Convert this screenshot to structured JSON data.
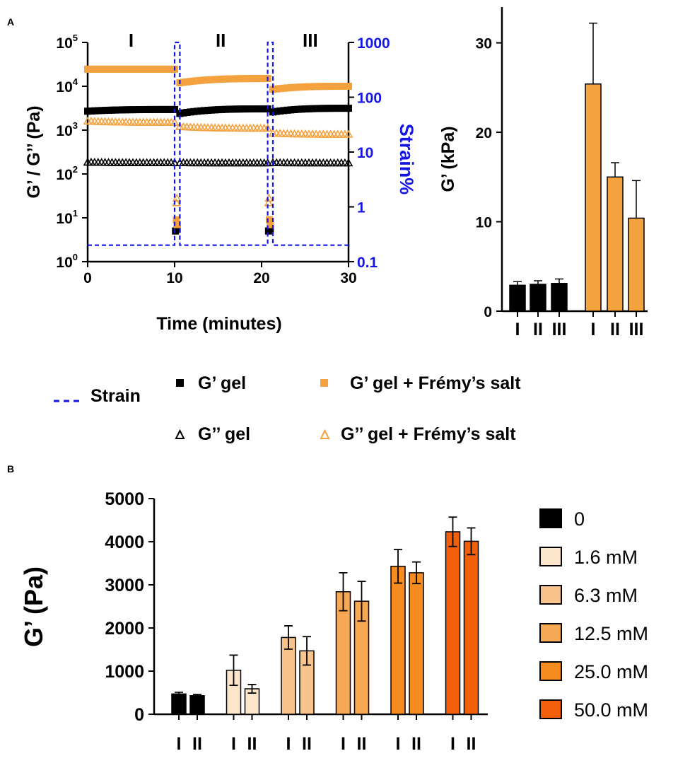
{
  "panel_labels": {
    "a": "A",
    "b": "B"
  },
  "colors": {
    "black": "#000000",
    "orange": "#F4A240",
    "strain": "#1515E6",
    "conc": [
      "#000000",
      "#FCE6CB",
      "#F9C48C",
      "#F6A855",
      "#F68B1F",
      "#F2600C"
    ]
  },
  "chart_data": [
    {
      "id": "rheology",
      "type": "line",
      "xlabel": "Time (minutes)",
      "ylabel": "G’ / G’’ (Pa)",
      "y2label": "Strain%",
      "xlim": [
        0,
        30
      ],
      "xticks": [
        "0",
        "10",
        "20",
        "30"
      ],
      "ylim_log10": [
        0,
        5
      ],
      "yticks": [
        {
          "base": "10",
          "exp": "0"
        },
        {
          "base": "10",
          "exp": "1"
        },
        {
          "base": "10",
          "exp": "2"
        },
        {
          "base": "10",
          "exp": "3"
        },
        {
          "base": "10",
          "exp": "4"
        },
        {
          "base": "10",
          "exp": "5"
        }
      ],
      "y2lim_log10": [
        -1,
        3
      ],
      "y2ticks": [
        "0.1",
        "1",
        "10",
        "100",
        "1000"
      ],
      "phases": [
        "I",
        "II",
        "III"
      ],
      "strain": {
        "low": 0.2,
        "high": 1000,
        "pulses": [
          [
            10,
            10.6
          ],
          [
            20.7,
            21.3
          ]
        ]
      },
      "series": [
        {
          "name": "G’ gel",
          "marker": "square",
          "color": "#000000",
          "segments": [
            [
              0,
              10,
              2700,
              2950
            ],
            [
              10.6,
              20.7,
              2400,
              3050
            ],
            [
              21.3,
              30,
              2600,
              3150
            ]
          ],
          "transitions": [
            [
              10.1,
              5
            ],
            [
              10.3,
              5.5
            ],
            [
              20.8,
              5
            ],
            [
              21.0,
              5.5
            ]
          ]
        },
        {
          "name": "G’ gel + Frémy’s salt",
          "marker": "square",
          "color": "#F4A240",
          "segments": [
            [
              0,
              10,
              24500,
              24500
            ],
            [
              10.6,
              20.7,
              12000,
              15000
            ],
            [
              21.3,
              30,
              8500,
              10000
            ]
          ],
          "transitions": [
            [
              10.2,
              9
            ],
            [
              10.3,
              7
            ],
            [
              20.9,
              9
            ],
            [
              21.0,
              7
            ]
          ]
        },
        {
          "name": "G’’ gel",
          "marker": "triangle",
          "color": "#000000",
          "segments": [
            [
              0,
              10,
              185,
              180
            ],
            [
              10.6,
              20.7,
              180,
              178
            ],
            [
              21.3,
              30,
              180,
              178
            ]
          ],
          "transitions": []
        },
        {
          "name": "G’’ gel + Frémy’s salt",
          "marker": "triangle",
          "color": "#F4A240",
          "segments": [
            [
              0,
              10,
              1600,
              1500
            ],
            [
              10.6,
              20.7,
              1200,
              1100
            ],
            [
              21.3,
              30,
              850,
              800
            ]
          ],
          "transitions": [
            [
              10.2,
              22
            ],
            [
              10.25,
              28
            ],
            [
              20.8,
              22
            ],
            [
              20.85,
              28
            ]
          ]
        }
      ]
    },
    {
      "id": "bar-a",
      "type": "bar",
      "ylabel": "G’ (kPa)",
      "ylim": [
        0,
        34
      ],
      "yticks": [
        "0",
        "10",
        "20",
        "30"
      ],
      "groups": [
        {
          "color": "#000000",
          "labels": [
            "I",
            "II",
            "III"
          ],
          "values": [
            2.9,
            3.0,
            3.1
          ],
          "errors": [
            0.4,
            0.4,
            0.5
          ]
        },
        {
          "color": "#F4A240",
          "labels": [
            "I",
            "II",
            "III"
          ],
          "values": [
            25.4,
            15.0,
            10.4
          ],
          "errors": [
            6.8,
            1.6,
            4.2
          ]
        }
      ]
    },
    {
      "id": "bar-b",
      "type": "bar",
      "ylabel": "G’ (Pa)",
      "ylim": [
        0,
        5000
      ],
      "yticks": [
        "0",
        "1000",
        "2000",
        "3000",
        "4000",
        "5000"
      ],
      "groups": [
        {
          "legend": "0",
          "labels": [
            "I",
            "II"
          ],
          "values": [
            470,
            430
          ],
          "errors": [
            40,
            30
          ]
        },
        {
          "legend": "1.6 mM",
          "labels": [
            "I",
            "II"
          ],
          "values": [
            1020,
            590
          ],
          "errors": [
            350,
            100
          ]
        },
        {
          "legend": "6.3 mM",
          "labels": [
            "I",
            "II"
          ],
          "values": [
            1780,
            1470
          ],
          "errors": [
            270,
            330
          ]
        },
        {
          "legend": "12.5 mM",
          "labels": [
            "I",
            "II"
          ],
          "values": [
            2840,
            2620
          ],
          "errors": [
            440,
            460
          ]
        },
        {
          "legend": "25.0 mM",
          "labels": [
            "I",
            "II"
          ],
          "values": [
            3430,
            3280
          ],
          "errors": [
            390,
            250
          ]
        },
        {
          "legend": "50.0 mM",
          "labels": [
            "I",
            "II"
          ],
          "values": [
            4230,
            4010
          ],
          "errors": [
            340,
            310
          ]
        }
      ]
    }
  ],
  "legend": {
    "strain": "Strain",
    "g1_gel": "G’ gel",
    "g1_salt": "G’ gel + Frémy’s salt",
    "g2_gel": "G’’ gel",
    "g2_salt": "G’’ gel + Frémy’s salt"
  }
}
